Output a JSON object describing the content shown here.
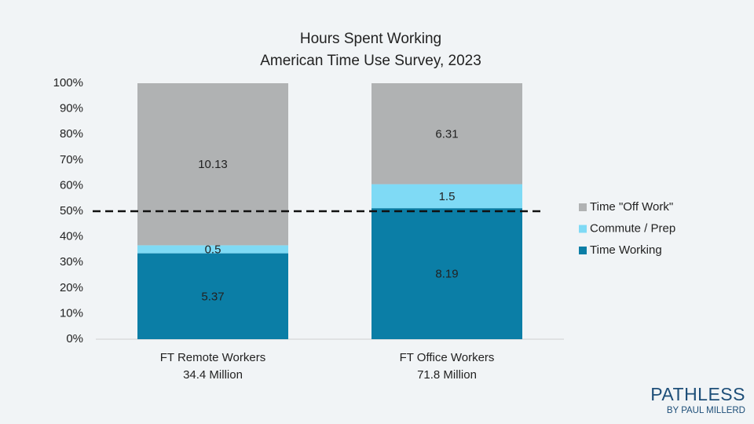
{
  "chart_data": {
    "type": "bar",
    "stacking": "percent",
    "title": "Hours Spent Working",
    "subtitle": "American Time Use Survey, 2023",
    "categories": [
      "FT Remote Workers",
      "FT Office Workers"
    ],
    "category_sublabels": [
      "34.4 Million",
      "71.8 Million"
    ],
    "series": [
      {
        "name": "Time Working",
        "color": "#0b7ea6",
        "values": [
          5.37,
          8.19
        ]
      },
      {
        "name": "Commute / Prep",
        "color": "#7fdaf5",
        "values": [
          0.5,
          1.5
        ]
      },
      {
        "name": "Time \"Off Work\"",
        "color": "#b0b2b3",
        "values": [
          10.13,
          6.31
        ]
      }
    ],
    "ylim": [
      0,
      100
    ],
    "yticks": [
      {
        "value": 0,
        "label": "0%"
      },
      {
        "value": 10,
        "label": "10%"
      },
      {
        "value": 20,
        "label": "20%"
      },
      {
        "value": 30,
        "label": "30%"
      },
      {
        "value": 40,
        "label": "40%"
      },
      {
        "value": 50,
        "label": "50%"
      },
      {
        "value": 60,
        "label": "60%"
      },
      {
        "value": 70,
        "label": "70%"
      },
      {
        "value": 80,
        "label": "80%"
      },
      {
        "value": 90,
        "label": "90%"
      },
      {
        "value": 100,
        "label": "100%"
      }
    ],
    "reference_line": 50,
    "legend": "right",
    "branding": {
      "name": "PATHLESS",
      "byline": "BY PAUL MILLERD"
    }
  }
}
